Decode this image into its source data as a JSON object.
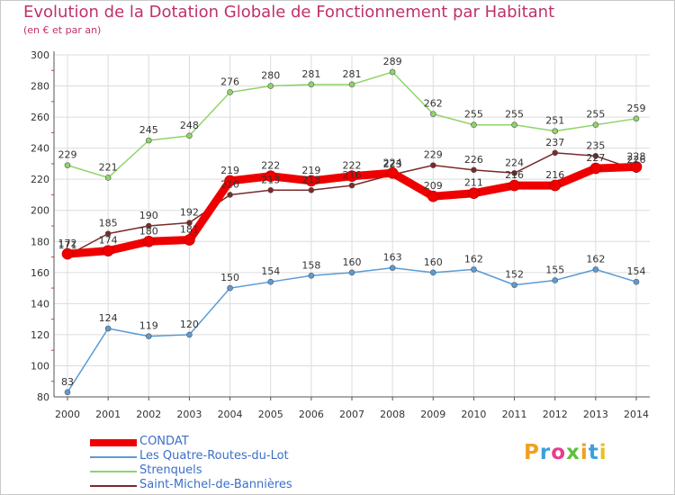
{
  "chart_data": {
    "type": "line",
    "title": "Evolution de la Dotation Globale de Fonctionnement par Habitant",
    "subtitle": "(en € et par an)",
    "xlabel": "",
    "ylabel": "",
    "ylim": [
      80,
      300
    ],
    "yticks": [
      "80",
      "100",
      "120",
      "140",
      "160",
      "180",
      "200",
      "220",
      "240",
      "260",
      "280",
      "300"
    ],
    "categories": [
      "2000",
      "2001",
      "2002",
      "2003",
      "2004",
      "2005",
      "2006",
      "2007",
      "2008",
      "2009",
      "2010",
      "2011",
      "2012",
      "2013",
      "2014"
    ],
    "grid": true,
    "series": [
      {
        "name": "CONDAT",
        "color": "#ee0000",
        "values": [
          172,
          174,
          180,
          181,
          219,
          222,
          219,
          222,
          224,
          209,
          211,
          216,
          216,
          227,
          228
        ],
        "labels": [
          "172",
          "174",
          "180",
          "181",
          "219",
          "222",
          "219",
          "222",
          "224",
          "209",
          "211",
          "216",
          "216",
          "227",
          "228"
        ]
      },
      {
        "name": "Les Quatre-Routes-du-Lot",
        "color": "#5b9bd5",
        "values": [
          83,
          124,
          119,
          120,
          150,
          154,
          158,
          160,
          163,
          160,
          162,
          152,
          155,
          162,
          154
        ],
        "labels": [
          "83",
          "124",
          "119",
          "120",
          "150",
          "154",
          "158",
          "160",
          "163",
          "160",
          "162",
          "152",
          "155",
          "162",
          "154"
        ]
      },
      {
        "name": "Strenquels",
        "color": "#8fd46a",
        "values": [
          229,
          221,
          245,
          248,
          276,
          280,
          281,
          281,
          289,
          262,
          255,
          255,
          251,
          255,
          259
        ],
        "labels": [
          "229",
          "221",
          "245",
          "248",
          "276",
          "280",
          "281",
          "281",
          "289",
          "262",
          "255",
          "255",
          "251",
          "255",
          "259"
        ]
      },
      {
        "name": "Saint-Michel-de-Bannières",
        "color": "#7a2a2a",
        "values": [
          171,
          185,
          190,
          192,
          210,
          213,
          213,
          216,
          223,
          229,
          226,
          224,
          237,
          235,
          226
        ],
        "labels": [
          "171",
          "185",
          "190",
          "192",
          "210",
          "213",
          "213",
          "216",
          "223",
          "229",
          "226",
          "224",
          "237",
          "235",
          "226"
        ]
      }
    ]
  },
  "logo": {
    "letters": [
      "P",
      "r",
      "o",
      "x",
      "i",
      "t",
      "i"
    ],
    "colors": [
      "#f0a020",
      "#3c9fdc",
      "#e83c8c",
      "#5fbf3c",
      "#f0a020",
      "#3c9fdc",
      "#e8c020"
    ]
  }
}
